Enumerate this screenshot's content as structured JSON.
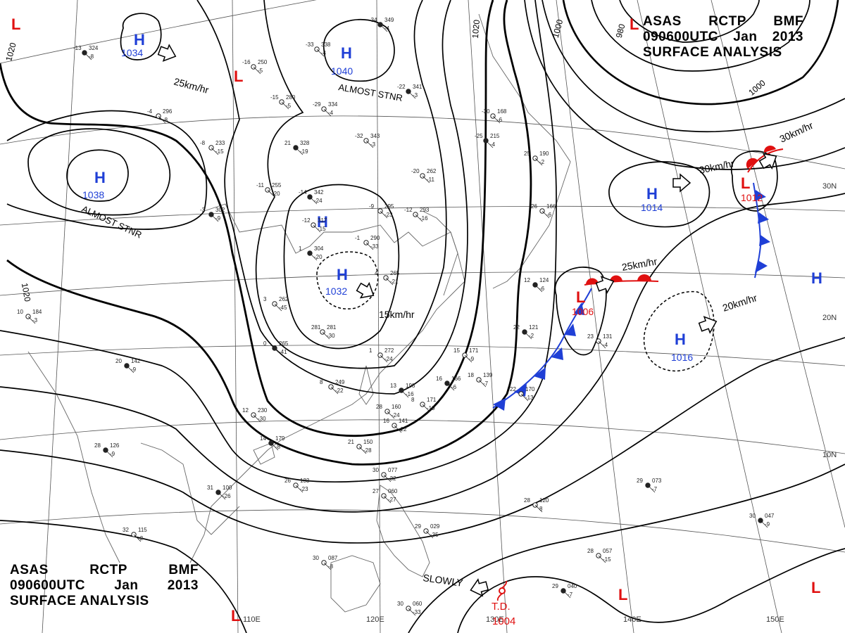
{
  "title_block": {
    "agency": "ASAS",
    "station": "RCTP",
    "code": "BMF",
    "datetime": "090600UTC",
    "month": "Jan",
    "year": "2013",
    "product": "SURFACE ANALYSIS"
  },
  "colors": {
    "high": "#1f3fd6",
    "low": "#e01010",
    "isobar": "#000000",
    "grid": "#555555",
    "coast": "#666666"
  },
  "isobar_values": [
    "1020",
    "1020",
    "1020",
    "1000",
    "980",
    "1000"
  ],
  "lat_labels": [
    "30N",
    "20N",
    "10N"
  ],
  "lon_labels": [
    "110E",
    "120E",
    "130E",
    "140E",
    "150E"
  ],
  "highs": [
    {
      "name": "high-1034",
      "letter": "H",
      "pressure": "1034"
    },
    {
      "name": "high-1040",
      "letter": "H",
      "pressure": "1040"
    },
    {
      "name": "high-1038",
      "letter": "H",
      "pressure": "1038"
    },
    {
      "name": "high-1032",
      "letter": "H",
      "pressure": "1032"
    },
    {
      "name": "high-1014",
      "letter": "H",
      "pressure": "1014"
    },
    {
      "name": "high-1016",
      "letter": "H",
      "pressure": "1016"
    },
    {
      "name": "high-inland",
      "letter": "H",
      "pressure": ""
    },
    {
      "name": "high-east",
      "letter": "H",
      "pressure": ""
    }
  ],
  "lows": [
    {
      "name": "low-1006",
      "letter": "L",
      "pressure": "1006"
    },
    {
      "name": "low-1012",
      "letter": "L",
      "pressure": "1012"
    },
    {
      "name": "low-nw",
      "letter": "L",
      "pressure": ""
    },
    {
      "name": "low-far-nw",
      "letter": "L",
      "pressure": ""
    },
    {
      "name": "low-ne",
      "letter": "L",
      "pressure": ""
    },
    {
      "name": "low-sw",
      "letter": "L",
      "pressure": ""
    },
    {
      "name": "low-se1",
      "letter": "L",
      "pressure": ""
    },
    {
      "name": "low-se2",
      "letter": "L",
      "pressure": ""
    }
  ],
  "tropical_depression": {
    "label": "T.D.",
    "pressure": "1004",
    "symbol": "tropical-depression-icon"
  },
  "motions": [
    {
      "name": "motion-1034",
      "text": "25km/hr"
    },
    {
      "name": "motion-1040",
      "text": "ALMOST STNR"
    },
    {
      "name": "motion-1038",
      "text": "ALMOST STNR"
    },
    {
      "name": "motion-1032",
      "text": "15km/hr"
    },
    {
      "name": "motion-1006",
      "text": "25km/hr"
    },
    {
      "name": "motion-1014",
      "text": "30km/hr"
    },
    {
      "name": "motion-1012",
      "text": "30km/hr"
    },
    {
      "name": "motion-1016",
      "text": "20km/hr"
    },
    {
      "name": "motion-td",
      "text": "SLOWLY"
    }
  ],
  "stations": [
    {
      "id": "s1",
      "t": "-13",
      "p": "324",
      "d": "-8"
    },
    {
      "id": "s2",
      "t": "-16",
      "p": "250",
      "d": "-5"
    },
    {
      "id": "s3",
      "t": "-33",
      "p": "338",
      "d": "-4"
    },
    {
      "id": "s4",
      "t": "-34",
      "p": "349",
      "d": "-4"
    },
    {
      "id": "s5",
      "t": "-15",
      "p": "280",
      "d": "-5"
    },
    {
      "id": "s6",
      "t": "-29",
      "p": "334",
      "d": "-4"
    },
    {
      "id": "s7",
      "t": "-22",
      "p": "341",
      "d": "-3"
    },
    {
      "id": "s8",
      "t": "-4",
      "p": "296",
      "d": "-8"
    },
    {
      "id": "s9",
      "t": "-8",
      "p": "233",
      "d": "-15"
    },
    {
      "id": "s10",
      "t": "21",
      "p": "328",
      "d": "-19"
    },
    {
      "id": "s11",
      "t": "-32",
      "p": "343",
      "d": "-3"
    },
    {
      "id": "s12",
      "t": "-30",
      "p": "168",
      "d": "-6"
    },
    {
      "id": "s13",
      "t": "-25",
      "p": "215",
      "d": "-4"
    },
    {
      "id": "s14",
      "t": "-20",
      "p": "262",
      "d": "-11"
    },
    {
      "id": "s15",
      "t": "-11",
      "p": "255",
      "d": "-20"
    },
    {
      "id": "s16",
      "t": "-14",
      "p": "342",
      "d": "-24"
    },
    {
      "id": "s17",
      "t": "-9",
      "p": "295",
      "d": "-23"
    },
    {
      "id": "s18",
      "t": "-12",
      "p": "293",
      "d": "-16"
    },
    {
      "id": "s19",
      "t": "-3",
      "p": "302",
      "d": "-9"
    },
    {
      "id": "s20",
      "t": "-12",
      "p": "317",
      "d": "-15"
    },
    {
      "id": "s21",
      "t": "-1",
      "p": "290",
      "d": "-33"
    },
    {
      "id": "s22",
      "t": "1",
      "p": "304",
      "d": "-20"
    },
    {
      "id": "s23",
      "t": "4",
      "p": "265",
      "d": "-21"
    },
    {
      "id": "s24",
      "t": "10",
      "p": "184",
      "d": "-3"
    },
    {
      "id": "s25",
      "t": "20",
      "p": "142",
      "d": "-9"
    },
    {
      "id": "s26",
      "t": "3",
      "p": "262",
      "d": "-45"
    },
    {
      "id": "s27",
      "t": "281",
      "p": "281",
      "d": "-30"
    },
    {
      "id": "s28",
      "t": "0",
      "p": "265",
      "d": "-41"
    },
    {
      "id": "s29",
      "t": "1",
      "p": "272",
      "d": "-24"
    },
    {
      "id": "s30",
      "t": "15",
      "p": "171",
      "d": "-9"
    },
    {
      "id": "s31",
      "t": "16",
      "p": "166",
      "d": "-6"
    },
    {
      "id": "s32",
      "t": "18",
      "p": "139",
      "d": "-7"
    },
    {
      "id": "s33",
      "t": "8",
      "p": "249",
      "d": "-22"
    },
    {
      "id": "s34",
      "t": "13",
      "p": "198",
      "d": "-16"
    },
    {
      "id": "s35",
      "t": "8",
      "p": "171",
      "d": "-19"
    },
    {
      "id": "s36",
      "t": "12",
      "p": "230",
      "d": "-30"
    },
    {
      "id": "s37",
      "t": "14",
      "p": "179",
      "d": "-8"
    },
    {
      "id": "s38",
      "t": "21",
      "p": "150",
      "d": "-28"
    },
    {
      "id": "s39",
      "t": "16",
      "p": "141",
      "d": "-22"
    },
    {
      "id": "s40",
      "t": "28",
      "p": "126",
      "d": "-9"
    },
    {
      "id": "s41",
      "t": "30",
      "p": "077",
      "d": "-32"
    },
    {
      "id": "s42",
      "t": "26",
      "p": "133",
      "d": "-23"
    },
    {
      "id": "s43",
      "t": "31",
      "p": "100",
      "d": "-26"
    },
    {
      "id": "s44",
      "t": "27",
      "p": "060",
      "d": "-27"
    },
    {
      "id": "s45",
      "t": "28",
      "p": "120",
      "d": "8"
    },
    {
      "id": "s46",
      "t": "29",
      "p": "073",
      "d": "-7"
    },
    {
      "id": "s47",
      "t": "32",
      "p": "115",
      "d": "-2"
    },
    {
      "id": "s48",
      "t": "28",
      "p": "057",
      "d": "-15"
    },
    {
      "id": "s49",
      "t": "30",
      "p": "047",
      "d": "-9"
    },
    {
      "id": "s50",
      "t": "30",
      "p": "087",
      "d": "-8"
    },
    {
      "id": "s51",
      "t": "29",
      "p": "029",
      "d": "-35"
    },
    {
      "id": "s52",
      "t": "29",
      "p": "040",
      "d": "-7"
    },
    {
      "id": "s53",
      "t": "30",
      "p": "060",
      "d": "-33"
    },
    {
      "id": "s54",
      "t": "26",
      "p": "166",
      "d": "-6"
    },
    {
      "id": "s55",
      "t": "12",
      "p": "124",
      "d": "-6"
    },
    {
      "id": "s56",
      "t": "22",
      "p": "170",
      "d": "-13"
    },
    {
      "id": "s57",
      "t": "23",
      "p": "131",
      "d": "-4"
    },
    {
      "id": "s58",
      "t": "22",
      "p": "121",
      "d": "-2"
    },
    {
      "id": "s59",
      "t": "28",
      "p": "160",
      "d": "-24"
    },
    {
      "id": "s60",
      "t": "25",
      "p": "190",
      "d": "-2"
    }
  ]
}
